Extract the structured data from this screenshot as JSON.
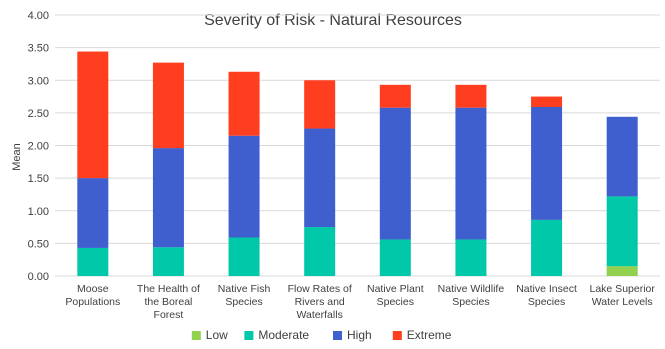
{
  "chart_data": {
    "type": "bar",
    "stacked": true,
    "title": "Severity of Risk - Natural Resources",
    "xlabel": "",
    "ylabel": "Mean",
    "ylim": [
      0,
      4
    ],
    "yticks": [
      "0.00",
      "0.50",
      "1.00",
      "1.50",
      "2.00",
      "2.50",
      "3.00",
      "3.50",
      "4.00"
    ],
    "grid": true,
    "legend_position": "bottom",
    "categories": [
      [
        "Moose",
        "Populations"
      ],
      [
        "The Health of",
        "the Boreal",
        "Forest"
      ],
      [
        "Native Fish",
        "Species"
      ],
      [
        "Flow Rates of",
        "Rivers and",
        "Waterfalls"
      ],
      [
        "Native Plant",
        "Species"
      ],
      [
        "Native Wildlife",
        "Species"
      ],
      [
        "Native Insect",
        "Species"
      ],
      [
        "Lake Superior",
        "Water Levels"
      ]
    ],
    "series": [
      {
        "name": "Low",
        "color": "#92d050",
        "values": [
          0,
          0,
          0,
          0,
          0,
          0,
          0,
          0.15
        ]
      },
      {
        "name": "Moderate",
        "color": "#00c8a8",
        "values": [
          0.43,
          0.44,
          0.59,
          0.75,
          0.56,
          0.56,
          0.86,
          1.07
        ]
      },
      {
        "name": "High",
        "color": "#3f5fcf",
        "values": [
          1.07,
          1.52,
          1.56,
          1.51,
          2.02,
          2.02,
          1.73,
          1.22
        ]
      },
      {
        "name": "Extreme",
        "color": "#ff3d1f",
        "values": [
          1.94,
          1.31,
          0.98,
          0.74,
          0.35,
          0.35,
          0.16,
          0
        ]
      }
    ]
  }
}
